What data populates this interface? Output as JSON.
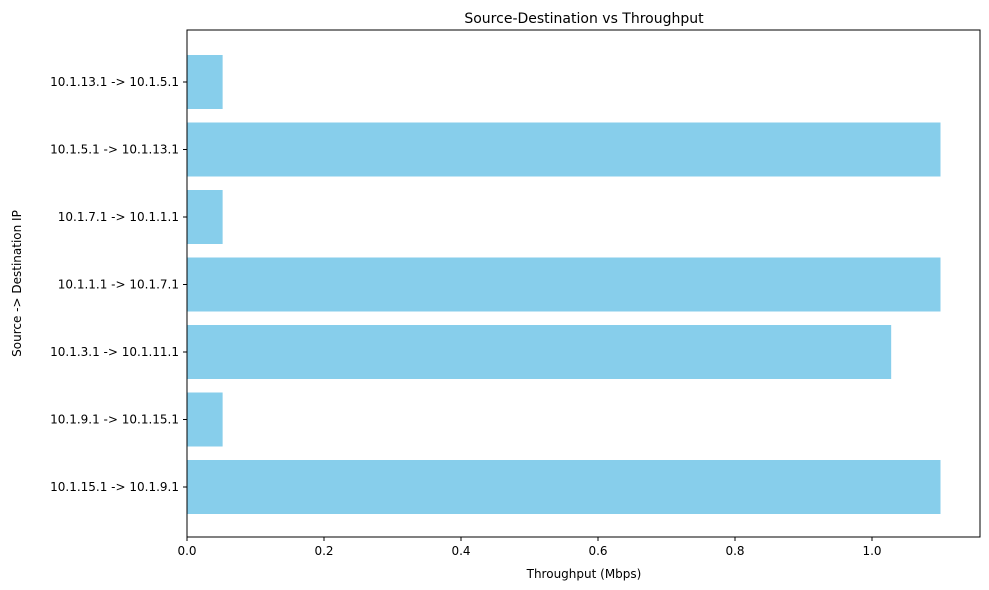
{
  "chart_data": {
    "type": "bar",
    "orientation": "horizontal",
    "title": "Source-Destination vs Throughput",
    "xlabel": "Throughput (Mbps)",
    "ylabel": "Source -> Destination IP",
    "categories": [
      "10.1.15.1 -> 10.1.9.1",
      "10.1.9.1 -> 10.1.15.1",
      "10.1.3.1 -> 10.1.11.1",
      "10.1.1.1 -> 10.1.7.1",
      "10.1.7.1 -> 10.1.1.1",
      "10.1.5.1 -> 10.1.13.1",
      "10.1.13.1 -> 10.1.5.1"
    ],
    "values": [
      1.1,
      0.052,
      1.028,
      1.1,
      0.052,
      1.1,
      0.052
    ],
    "xlim": [
      0,
      1.155
    ],
    "xticks": [
      "0.0",
      "0.2",
      "0.4",
      "0.6",
      "0.8",
      "1.0"
    ],
    "bar_color": "#87ceeb",
    "grid": false
  }
}
